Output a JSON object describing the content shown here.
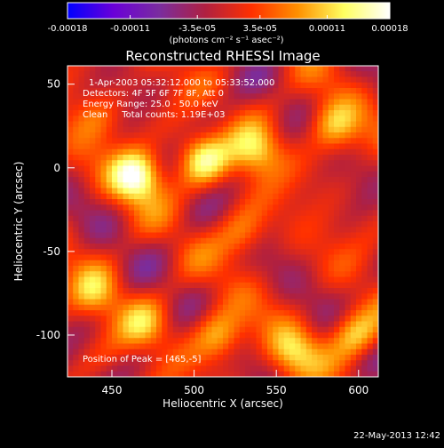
{
  "chart_data": {
    "type": "heatmap",
    "title": "Reconstructed RHESSI Image",
    "xlabel": "Heliocentric X (arcsec)",
    "ylabel": "Heliocentric Y (arcsec)",
    "xlim": [
      423,
      612
    ],
    "ylim": [
      -125,
      61
    ],
    "xticks": [
      450,
      500,
      550,
      600
    ],
    "yticks": [
      50,
      0,
      -50,
      -100
    ],
    "colorbar": {
      "min": -0.00018,
      "max": 0.00018,
      "ticks": [
        "-0.00018",
        "-0.00011",
        "-3.5e-05",
        "3.5e-05",
        "0.00011",
        "0.00018"
      ],
      "tick_values": [
        -0.00018,
        -0.00011,
        -3.5e-05,
        3.5e-05,
        0.00011,
        0.00018
      ],
      "unit_label": "(photons cm⁻² s⁻¹ asec⁻²)",
      "colors": [
        "#0000ff",
        "#6a00d8",
        "#7a2d9e",
        "#b02040",
        "#ff3000",
        "#ff9000",
        "#ffff60",
        "#ffffff"
      ]
    },
    "annotations": {
      "time_range": "1-Apr-2003 05:32:12.000 to 05:33:52.000",
      "detectors": "Detectors: 4F 5F 6F 7F 8F, Att 0",
      "energy_range": "Energy Range: 25.0 - 50.0 keV",
      "clean_counts": "Clean     Total counts: 1.19E+03",
      "peak": "Position of Peak = [465,-5]"
    },
    "peak": {
      "x": 465,
      "y": -5,
      "value": 0.00018
    },
    "sources": [
      {
        "x": 465,
        "y": -5,
        "value": 0.00018
      },
      {
        "x": 505,
        "y": 5,
        "value": 0.00013
      },
      {
        "x": 538,
        "y": 10,
        "value": 0.00012
      },
      {
        "x": 585,
        "y": 25,
        "value": 0.00011
      },
      {
        "x": 598,
        "y": -100,
        "value": 0.00012
      },
      {
        "x": 560,
        "y": -110,
        "value": 0.0001
      },
      {
        "x": 515,
        "y": -100,
        "value": 0.00011
      },
      {
        "x": 470,
        "y": -95,
        "value": 8e-05
      },
      {
        "x": 440,
        "y": -75,
        "value": 9e-05
      },
      {
        "x": 530,
        "y": -40,
        "value": 8e-05
      },
      {
        "x": 440,
        "y": 30,
        "value": 6e-05
      }
    ]
  },
  "footer": {
    "timestamp": "22-May-2013 12:42"
  }
}
